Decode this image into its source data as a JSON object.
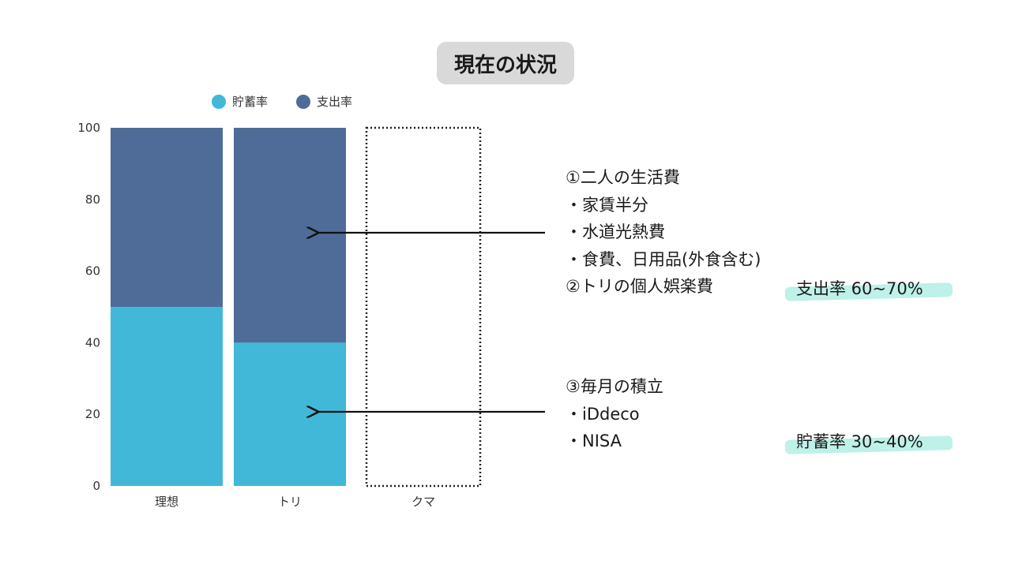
{
  "title": "現在の状況",
  "colors": {
    "savings": "#42b8d8",
    "spending": "#4f6c98",
    "axis_text": "#333333"
  },
  "chart_data": {
    "type": "bar",
    "stacked": true,
    "categories": [
      "理想",
      "トリ",
      "クマ"
    ],
    "series": [
      {
        "name": "貯蓄率",
        "values": [
          50,
          40,
          0
        ]
      },
      {
        "name": "支出率",
        "values": [
          50,
          60,
          0
        ]
      }
    ],
    "ylim": [
      0,
      100
    ],
    "yticks": [
      "0",
      "20",
      "40",
      "60",
      "80",
      "100"
    ],
    "legend": "top-left",
    "grid": false,
    "empty_category_note": "dotted outline (no data)"
  },
  "annotations": {
    "spending_block": {
      "lines": [
        "①二人の生活費",
        "・家賃半分",
        "・水道光熱費",
        "・食費、日用品(外食含む)",
        "②トリの個人娯楽費"
      ],
      "highlight": "支出率 60~70%"
    },
    "savings_block": {
      "lines": [
        "③毎月の積立",
        "・iDdeco",
        "・NISA"
      ],
      "highlight": "貯蓄率 30~40%"
    }
  }
}
